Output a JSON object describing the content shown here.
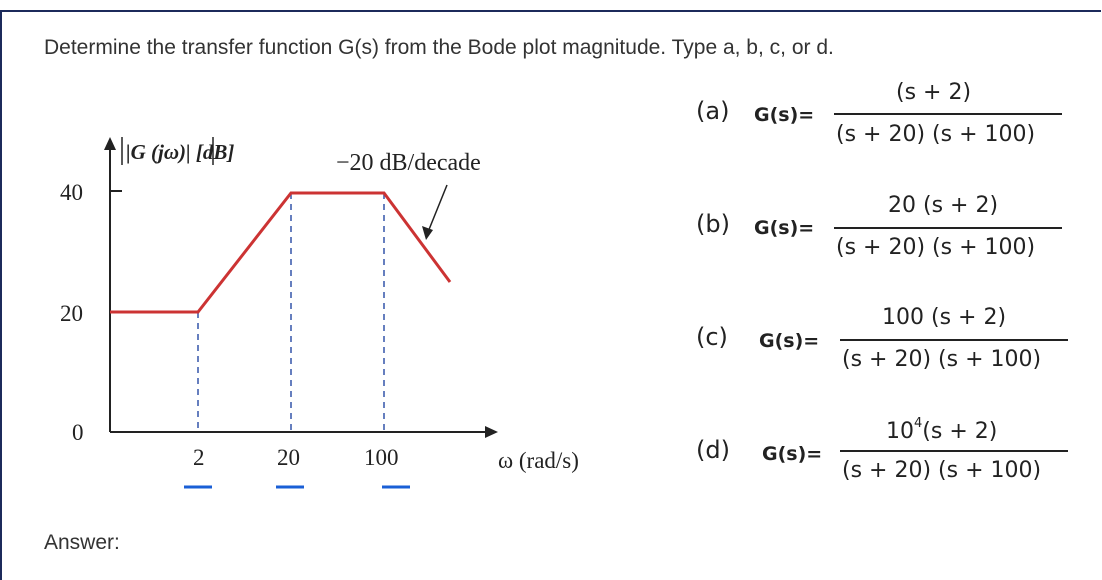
{
  "question": {
    "text": "Determine the transfer function G(s) from the Bode plot magnitude. Type a, b, c, or d."
  },
  "plot": {
    "y_axis_label": "|G (jω)| [dB]",
    "slope_annotation": "−20 dB/decade",
    "x_axis_label": "ω (rad/s)",
    "y_ticks": [
      "40",
      "20",
      "0"
    ],
    "x_ticks": [
      "2",
      "20",
      "100"
    ]
  },
  "options": [
    {
      "letter": "(a)",
      "gs": "G(s)=",
      "numerator": "(s + 2)",
      "denominator": "(s + 20) (s + 100)"
    },
    {
      "letter": "(b)",
      "gs": "G(s)=",
      "numerator": "20 (s + 2)",
      "denominator": "(s + 20) (s + 100)"
    },
    {
      "letter": "(c)",
      "gs": "G(s)=",
      "numerator": "100 (s + 2)",
      "denominator": "(s + 20) (s + 100)"
    },
    {
      "letter": "(d)",
      "gs": "G(s)=",
      "numerator_base": "10",
      "numerator_exp": "4",
      "numerator_rest": "(s + 2)",
      "denominator": "(s + 20) (s + 100)"
    }
  ],
  "answer": {
    "label": "Answer:"
  },
  "colors": {
    "curve": "#cc3333",
    "guides": "#3355aa",
    "frame": "#1c2a5b",
    "ticks_underline": "#1a5fd6"
  }
}
